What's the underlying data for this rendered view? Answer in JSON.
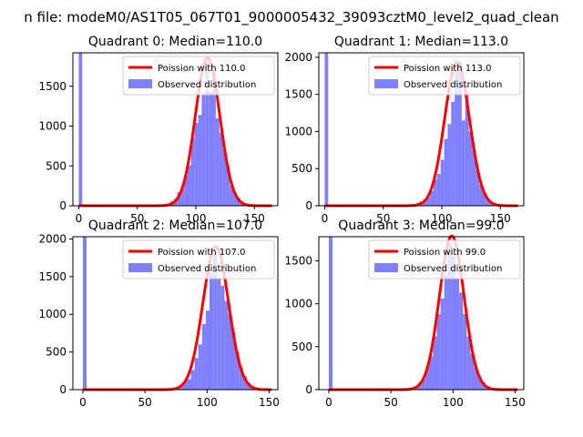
{
  "suptitle": "n file: modeM0/AS1T05_067T01_9000005432_39093cztM0_level2_quad_clean",
  "colors": {
    "poisson": "#ff0000",
    "observed": "#8080ff",
    "axis": "#000000"
  },
  "chart_data": [
    {
      "type": "bar",
      "title": "Quadrant 0: Median=110.0",
      "xlim": [
        -5,
        170
      ],
      "ylim": [
        0,
        1920
      ],
      "xticks": [
        0,
        50,
        100,
        150
      ],
      "yticks": [
        0,
        500,
        1000,
        1500
      ],
      "legend_position": "upper right",
      "series": [
        {
          "name": "Poission with 110.0",
          "kind": "line",
          "mean": 110,
          "peak": 1860
        },
        {
          "name": "Observed distribution",
          "kind": "histogram",
          "bin_width": 3,
          "bins": [
            {
              "x": 0,
              "y": 1920
            },
            {
              "x": 69,
              "y": 10
            },
            {
              "x": 72,
              "y": 20
            },
            {
              "x": 75,
              "y": 30
            },
            {
              "x": 78,
              "y": 55
            },
            {
              "x": 81,
              "y": 85
            },
            {
              "x": 84,
              "y": 170
            },
            {
              "x": 87,
              "y": 210
            },
            {
              "x": 90,
              "y": 380
            },
            {
              "x": 93,
              "y": 510
            },
            {
              "x": 96,
              "y": 850
            },
            {
              "x": 99,
              "y": 1040
            },
            {
              "x": 102,
              "y": 1140
            },
            {
              "x": 105,
              "y": 1420
            },
            {
              "x": 108,
              "y": 1880
            },
            {
              "x": 111,
              "y": 1430
            },
            {
              "x": 114,
              "y": 1680
            },
            {
              "x": 117,
              "y": 1100
            },
            {
              "x": 120,
              "y": 920
            },
            {
              "x": 123,
              "y": 700
            },
            {
              "x": 126,
              "y": 500
            },
            {
              "x": 129,
              "y": 250
            },
            {
              "x": 132,
              "y": 160
            },
            {
              "x": 135,
              "y": 100
            },
            {
              "x": 138,
              "y": 45
            },
            {
              "x": 141,
              "y": 20
            },
            {
              "x": 144,
              "y": 10
            }
          ]
        }
      ]
    },
    {
      "type": "bar",
      "title": "Quadrant 1: Median=113.0",
      "xlim": [
        -5,
        170
      ],
      "ylim": [
        0,
        2060
      ],
      "xticks": [
        0,
        50,
        100,
        150
      ],
      "yticks": [
        0,
        500,
        1000,
        1500,
        2000
      ],
      "legend_position": "upper right",
      "series": [
        {
          "name": "Poission with 113.0",
          "kind": "line",
          "mean": 113,
          "peak": 1930
        },
        {
          "name": "Observed distribution",
          "kind": "histogram",
          "bin_width": 3,
          "bins": [
            {
              "x": 0,
              "y": 2060
            },
            {
              "x": 72,
              "y": 15
            },
            {
              "x": 75,
              "y": 25
            },
            {
              "x": 78,
              "y": 40
            },
            {
              "x": 81,
              "y": 60
            },
            {
              "x": 84,
              "y": 90
            },
            {
              "x": 87,
              "y": 110
            },
            {
              "x": 90,
              "y": 200
            },
            {
              "x": 93,
              "y": 360
            },
            {
              "x": 96,
              "y": 430
            },
            {
              "x": 99,
              "y": 620
            },
            {
              "x": 102,
              "y": 900
            },
            {
              "x": 105,
              "y": 1100
            },
            {
              "x": 108,
              "y": 1400
            },
            {
              "x": 111,
              "y": 1800
            },
            {
              "x": 114,
              "y": 1950
            },
            {
              "x": 117,
              "y": 1150
            },
            {
              "x": 120,
              "y": 1550
            },
            {
              "x": 123,
              "y": 1000
            },
            {
              "x": 126,
              "y": 750
            },
            {
              "x": 129,
              "y": 480
            },
            {
              "x": 132,
              "y": 280
            },
            {
              "x": 135,
              "y": 180
            },
            {
              "x": 138,
              "y": 90
            },
            {
              "x": 141,
              "y": 45
            },
            {
              "x": 144,
              "y": 20
            },
            {
              "x": 147,
              "y": 10
            }
          ]
        }
      ]
    },
    {
      "type": "bar",
      "title": "Quadrant 2: Median=107.0",
      "xlim": [
        -8,
        157
      ],
      "ylim": [
        0,
        2030
      ],
      "xticks": [
        0,
        50,
        100,
        150
      ],
      "yticks": [
        0,
        500,
        1000,
        1500,
        2000
      ],
      "legend_position": "upper right",
      "series": [
        {
          "name": "Poission with 107.0",
          "kind": "line",
          "mean": 107,
          "peak": 1900
        },
        {
          "name": "Observed distribution",
          "kind": "histogram",
          "bin_width": 3,
          "bins": [
            {
              "x": 0,
              "y": 2030
            },
            {
              "x": 69,
              "y": 10
            },
            {
              "x": 72,
              "y": 20
            },
            {
              "x": 75,
              "y": 40
            },
            {
              "x": 78,
              "y": 60
            },
            {
              "x": 81,
              "y": 110
            },
            {
              "x": 84,
              "y": 140
            },
            {
              "x": 87,
              "y": 260
            },
            {
              "x": 90,
              "y": 420
            },
            {
              "x": 93,
              "y": 600
            },
            {
              "x": 96,
              "y": 870
            },
            {
              "x": 99,
              "y": 1050
            },
            {
              "x": 102,
              "y": 1560
            },
            {
              "x": 105,
              "y": 1800
            },
            {
              "x": 108,
              "y": 1480
            },
            {
              "x": 111,
              "y": 1380
            },
            {
              "x": 114,
              "y": 1180
            },
            {
              "x": 117,
              "y": 1000
            },
            {
              "x": 120,
              "y": 760
            },
            {
              "x": 123,
              "y": 500
            },
            {
              "x": 126,
              "y": 300
            },
            {
              "x": 129,
              "y": 180
            },
            {
              "x": 132,
              "y": 90
            },
            {
              "x": 135,
              "y": 45
            },
            {
              "x": 138,
              "y": 20
            },
            {
              "x": 141,
              "y": 10
            }
          ]
        }
      ]
    },
    {
      "type": "bar",
      "title": "Quadrant 3: Median=99.0",
      "xlim": [
        -8,
        157
      ],
      "ylim": [
        0,
        1780
      ],
      "xticks": [
        0,
        50,
        100,
        150
      ],
      "yticks": [
        0,
        500,
        1000,
        1500
      ],
      "legend_position": "upper right",
      "series": [
        {
          "name": "Poission with 99.0",
          "kind": "line",
          "mean": 99,
          "peak": 1790
        },
        {
          "name": "Observed distribution",
          "kind": "histogram",
          "bin_width": 3,
          "bins": [
            {
              "x": 0,
              "y": 1780
            },
            {
              "x": 60,
              "y": 10
            },
            {
              "x": 63,
              "y": 15
            },
            {
              "x": 66,
              "y": 25
            },
            {
              "x": 69,
              "y": 40
            },
            {
              "x": 72,
              "y": 80
            },
            {
              "x": 75,
              "y": 130
            },
            {
              "x": 78,
              "y": 260
            },
            {
              "x": 81,
              "y": 390
            },
            {
              "x": 84,
              "y": 620
            },
            {
              "x": 87,
              "y": 880
            },
            {
              "x": 90,
              "y": 1060
            },
            {
              "x": 93,
              "y": 1340
            },
            {
              "x": 96,
              "y": 1700
            },
            {
              "x": 99,
              "y": 1560
            },
            {
              "x": 102,
              "y": 1300
            },
            {
              "x": 105,
              "y": 1130
            },
            {
              "x": 108,
              "y": 880
            },
            {
              "x": 111,
              "y": 620
            },
            {
              "x": 114,
              "y": 420
            },
            {
              "x": 117,
              "y": 250
            },
            {
              "x": 120,
              "y": 150
            },
            {
              "x": 123,
              "y": 90
            },
            {
              "x": 126,
              "y": 40
            },
            {
              "x": 129,
              "y": 20
            },
            {
              "x": 132,
              "y": 10
            }
          ]
        }
      ]
    }
  ]
}
